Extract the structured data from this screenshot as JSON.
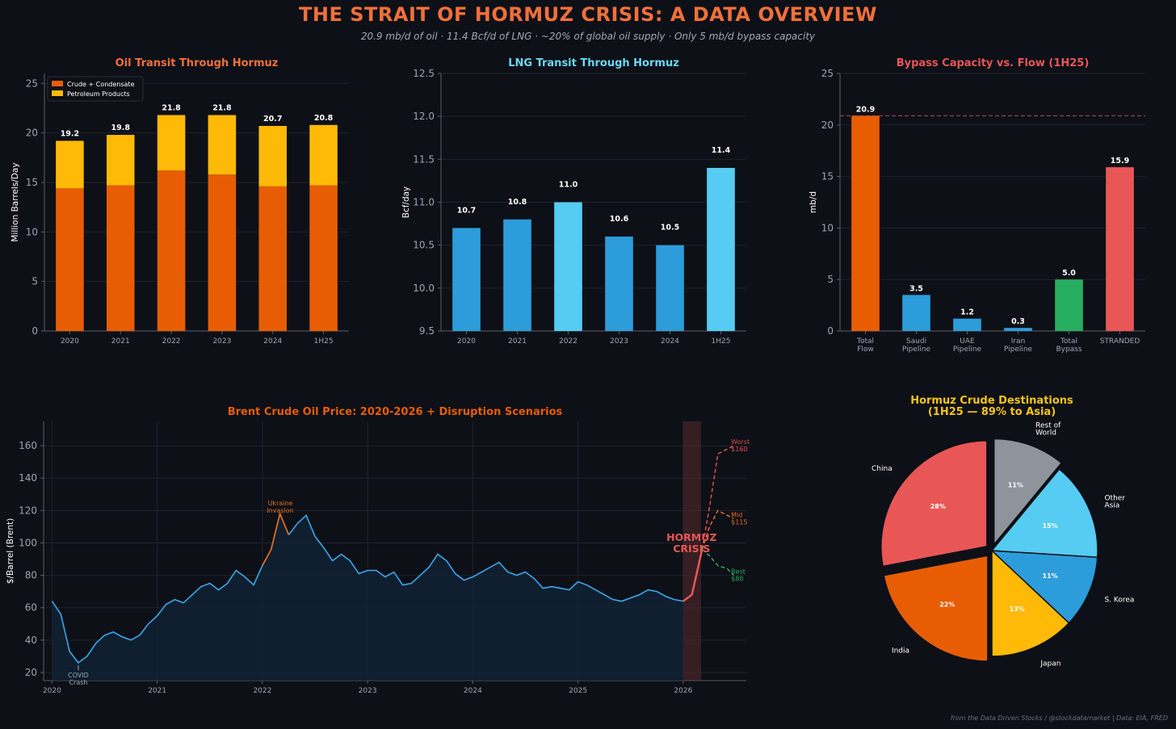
{
  "title": "THE STRAIT OF HORMUZ CRISIS: A DATA OVERVIEW",
  "subtitle": "20.9 mb/d of oil  ·  11.4 Bcf/d of LNG  ·  ~20% of global oil supply  ·  Only 5 mb/d bypass capacity",
  "footer": "from the Data Driven Stocks / @stockdatamarket  |  Data: EIA, FRED",
  "colors": {
    "background": "#0d1017",
    "orange": "#e85d04",
    "amber": "#ffba08",
    "blue": "#2d9cdb",
    "cyan": "#56ccf2",
    "red": "#e85656",
    "green": "#27ae60",
    "gray": "#8e949c",
    "title_orange": "#f0703a"
  },
  "chart_data": [
    {
      "id": "oil",
      "type": "bar",
      "stacked": true,
      "title": "Oil Transit Through Hormuz",
      "title_color": "#f0703a",
      "ylabel": "Million Barrels/Day",
      "ylim": [
        0,
        26
      ],
      "yticks": [
        0,
        5,
        10,
        15,
        20,
        25
      ],
      "categories": [
        "2020",
        "2021",
        "2022",
        "2023",
        "2024",
        "1H25"
      ],
      "series": [
        {
          "name": "Crude + Condensate",
          "color": "#e85d04",
          "values": [
            14.4,
            14.7,
            16.2,
            15.8,
            14.6,
            14.7
          ]
        },
        {
          "name": "Petroleum Products",
          "color": "#ffba08",
          "values": [
            4.8,
            5.1,
            5.6,
            6.0,
            6.1,
            6.1
          ]
        }
      ],
      "totals": [
        "19.2",
        "19.8",
        "21.8",
        "21.8",
        "20.7",
        "20.8"
      ],
      "legend_position": "upper-left"
    },
    {
      "id": "lng",
      "type": "bar",
      "title": "LNG Transit Through Hormuz",
      "title_color": "#6ad7f3",
      "ylabel": "Bcf/day",
      "ylim": [
        9.5,
        12.5
      ],
      "yticks": [
        9.5,
        10.0,
        10.5,
        11.0,
        11.5,
        12.0,
        12.5
      ],
      "categories": [
        "2020",
        "2021",
        "2022",
        "2023",
        "2024",
        "1H25"
      ],
      "values": [
        10.7,
        10.8,
        11.0,
        10.6,
        10.5,
        11.4
      ],
      "labels": [
        "10.7",
        "10.8",
        "11.0",
        "10.6",
        "10.5",
        "11.4"
      ],
      "colors": [
        "#2d9cdb",
        "#2d9cdb",
        "#56ccf2",
        "#2d9cdb",
        "#2d9cdb",
        "#56ccf2"
      ]
    },
    {
      "id": "bypass",
      "type": "bar",
      "title": "Bypass Capacity vs. Flow (1H25)",
      "title_color": "#e85656",
      "ylabel": "mb/d",
      "ylim": [
        0,
        25
      ],
      "yticks": [
        0,
        5,
        10,
        15,
        20,
        25
      ],
      "categories": [
        [
          "Total",
          "Flow"
        ],
        [
          "Saudi",
          "Pipeline"
        ],
        [
          "UAE",
          "Pipeline"
        ],
        [
          "Iran",
          "Pipeline"
        ],
        [
          "Total",
          "Bypass"
        ],
        [
          "STRANDED"
        ]
      ],
      "values": [
        20.9,
        3.5,
        1.2,
        0.3,
        5.0,
        15.9
      ],
      "labels": [
        "20.9",
        "3.5",
        "1.2",
        "0.3",
        "5.0",
        "15.9"
      ],
      "colors": [
        "#e85d04",
        "#2d9cdb",
        "#2d9cdb",
        "#2d9cdb",
        "#27ae60",
        "#e85656"
      ],
      "reference_line": 20.9
    },
    {
      "id": "brent",
      "type": "line",
      "title": "Brent Crude Oil Price: 2020-2026 + Disruption Scenarios",
      "title_color": "#e85d04",
      "ylabel": "$/Barrel (Brent)",
      "ylim": [
        15,
        175
      ],
      "yticks": [
        20,
        40,
        60,
        80,
        100,
        120,
        140,
        160
      ],
      "xlim": [
        2019.92,
        2026.6
      ],
      "xticks": [
        2020,
        2021,
        2022,
        2023,
        2024,
        2025,
        2026
      ],
      "series": [
        {
          "name": "Brent",
          "color": "#3aa0e0",
          "x_start": 2020.0,
          "x_step": 0.08333,
          "values": [
            64,
            56,
            33,
            26,
            30,
            38,
            43,
            45,
            42,
            40,
            43,
            50,
            55,
            62,
            65,
            63,
            68,
            73,
            75,
            71,
            75,
            83,
            79,
            74,
            86,
            96,
            118,
            105,
            112,
            117,
            104,
            97,
            89,
            93,
            89,
            81,
            83,
            83,
            79,
            82,
            74,
            75,
            80,
            85,
            93,
            89,
            81,
            77,
            79,
            82,
            85,
            88,
            82,
            80,
            82,
            78,
            72,
            73,
            72,
            71,
            76,
            74,
            71,
            68,
            65,
            64,
            66,
            68,
            71,
            70,
            67,
            65,
            64
          ]
        },
        {
          "name": "Hormuz crisis",
          "color": "#e85656",
          "x": [
            2026.0,
            2026.083,
            2026.18
          ],
          "values": [
            64,
            68,
            96
          ]
        },
        {
          "name": "Worst",
          "color": "#e04c4c",
          "dashed": true,
          "x": [
            2026.18,
            2026.25,
            2026.33,
            2026.42,
            2026.48
          ],
          "values": [
            96,
            122,
            155,
            158,
            160
          ]
        },
        {
          "name": "Mid",
          "color": "#e8701c",
          "dashed": true,
          "x": [
            2026.18,
            2026.25,
            2026.33,
            2026.42,
            2026.48
          ],
          "values": [
            96,
            110,
            120,
            117,
            115
          ]
        },
        {
          "name": "Best",
          "color": "#27ae60",
          "dashed": true,
          "x": [
            2026.18,
            2026.25,
            2026.33,
            2026.42,
            2026.48
          ],
          "values": [
            96,
            92,
            86,
            84,
            80
          ]
        }
      ],
      "crisis_span": [
        2026.0,
        2026.17
      ],
      "crisis_label": [
        "HORMUZ",
        "CRISIS"
      ],
      "annotations": [
        {
          "text": [
            "COVID",
            "Crash"
          ],
          "x": 2020.25,
          "y": 26,
          "color": "#a0a4ac"
        },
        {
          "text": [
            "Ukraine",
            "Invasion"
          ],
          "x": 2022.17,
          "y": 118,
          "color": "#e8701c"
        }
      ],
      "scenario_labels": [
        {
          "text": [
            "Worst",
            "$160"
          ],
          "color": "#e04c4c",
          "y": 160
        },
        {
          "text": [
            "Mid",
            "$115"
          ],
          "color": "#e8701c",
          "y": 115
        },
        {
          "text": [
            "Best",
            "$80"
          ],
          "color": "#27ae60",
          "y": 80
        }
      ]
    },
    {
      "id": "destinations",
      "type": "pie",
      "title": [
        "Hormuz Crude Destinations",
        "(1H25 — 89% to Asia)"
      ],
      "title_color": "#f5c518",
      "slices": [
        {
          "label": [
            "China"
          ],
          "value": 28,
          "pct": "28%",
          "color": "#e85656",
          "explode": true
        },
        {
          "label": [
            "India"
          ],
          "value": 22,
          "pct": "22%",
          "color": "#e85d04",
          "explode": true
        },
        {
          "label": [
            "Japan"
          ],
          "value": 13,
          "pct": "13%",
          "color": "#ffba08",
          "explode": false
        },
        {
          "label": [
            "S. Korea"
          ],
          "value": 11,
          "pct": "11%",
          "color": "#2d9cdb",
          "explode": false
        },
        {
          "label": [
            "Other",
            "Asia"
          ],
          "value": 15,
          "pct": "15%",
          "color": "#56ccf2",
          "explode": false
        },
        {
          "label": [
            "Rest of",
            "World"
          ],
          "value": 11,
          "pct": "11%",
          "color": "#8e949c",
          "explode": true
        }
      ]
    }
  ]
}
